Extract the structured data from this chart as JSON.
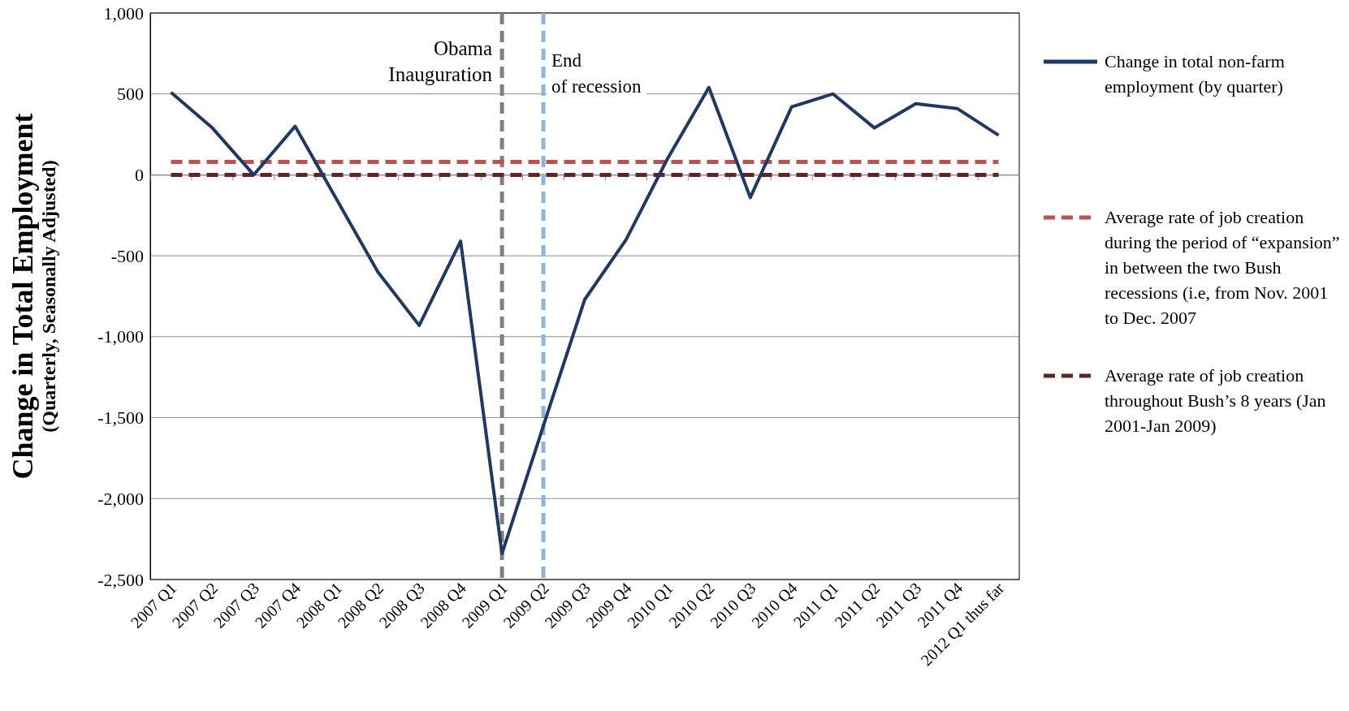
{
  "chart_data": {
    "type": "line",
    "ylabel": "Change in Total Employment\n(Quarterly, Seasonally Adjusted)",
    "categories": [
      "2007 Q1",
      "2007 Q2",
      "2007 Q3",
      "2007 Q4",
      "2008 Q1",
      "2008 Q2",
      "2008 Q3",
      "2008 Q4",
      "2009 Q1",
      "2009 Q2",
      "2009 Q3",
      "2009 Q4",
      "2010 Q1",
      "2010 Q2",
      "2010 Q3",
      "2010 Q4",
      "2011 Q1",
      "2011 Q2",
      "2011 Q3",
      "2011 Q4",
      "2012 Q1 thus far"
    ],
    "series": [
      {
        "name": "Change in total non-farm employment (by quarter)",
        "color": "#1f3864",
        "line_style": "solid",
        "values": [
          510,
          290,
          0,
          300,
          -150,
          -600,
          -930,
          -410,
          -2340,
          -1550,
          -770,
          -400,
          100,
          540,
          -140,
          420,
          500,
          290,
          440,
          410,
          245
        ]
      },
      {
        "name": "Average rate of job creation during the period of “expansion” in between the two Bush recessions (i.e, from Nov. 2001 to Dec. 2007",
        "color": "#c0504d",
        "line_style": "dashed",
        "values": [
          80,
          80,
          80,
          80,
          80,
          80,
          80,
          80,
          80,
          80,
          80,
          80,
          80,
          80,
          80,
          80,
          80,
          80,
          80,
          80,
          80
        ]
      },
      {
        "name": "Average rate of job creation throughout Bush’s 8 years (Jan 2001-Jan 2009)",
        "color": "#632523",
        "line_style": "dashed",
        "values": [
          0,
          0,
          0,
          0,
          0,
          0,
          0,
          0,
          0,
          0,
          0,
          0,
          0,
          0,
          0,
          0,
          0,
          0,
          0,
          0,
          0
        ]
      }
    ],
    "ylim": [
      -2500,
      1000
    ],
    "yticks": [
      {
        "value": -2500,
        "label": "-2,500"
      },
      {
        "value": -2000,
        "label": "-2,000"
      },
      {
        "value": -1500,
        "label": "-1,500"
      },
      {
        "value": -1000,
        "label": "-1,000"
      },
      {
        "value": -500,
        "label": "-500"
      },
      0,
      500,
      {
        "value": 1000,
        "label": "1,000"
      }
    ],
    "ref_lines": [
      {
        "axis": "x",
        "value": "2009 Q1",
        "label": "Obama Inauguration",
        "color": "#808080",
        "line_style": "dashed"
      },
      {
        "axis": "x",
        "value": "2009 Q2",
        "label": "End of recession",
        "color": "#8db3e2",
        "line_style": "dashed"
      }
    ],
    "grid": "y",
    "legend": "right",
    "marker": "none"
  }
}
